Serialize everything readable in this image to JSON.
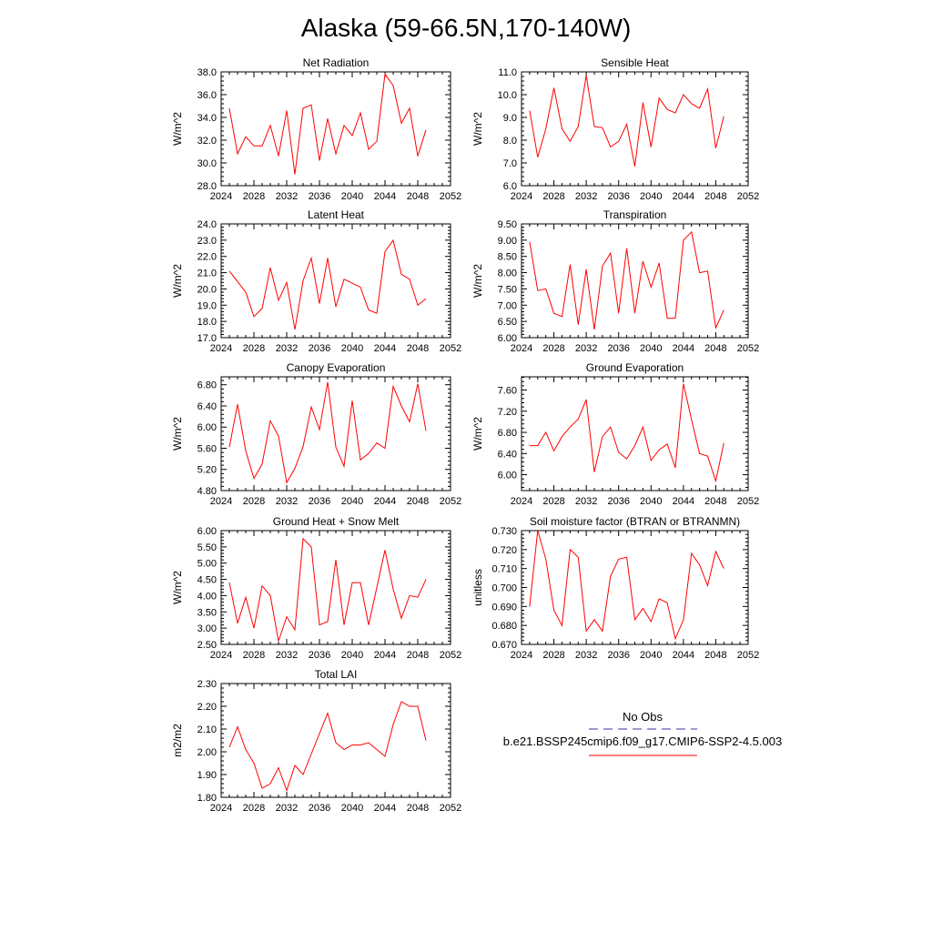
{
  "title": "Alaska (59-66.5N,170-140W)",
  "colors": {
    "model": "#ff0000",
    "obs": "#3333aa",
    "axis": "#000000"
  },
  "legend": {
    "obs_label": "No Obs",
    "model_label": "b.e21.BSSP245cmip6.f09_g17.CMIP6-SSP2-4.5.003"
  },
  "chart_data": [
    {
      "type": "line",
      "title": "Net Radiation",
      "ylabel": "W/m^2",
      "xlim": [
        2024,
        2052
      ],
      "ylim": [
        28,
        38
      ],
      "xticks": [
        2024,
        2028,
        2032,
        2036,
        2040,
        2044,
        2048,
        2052
      ],
      "yticks": [
        28,
        30,
        32,
        34,
        36,
        38
      ],
      "ytick_labels": [
        "28.0",
        "30.0",
        "32.0",
        "34.0",
        "36.0",
        "38.0"
      ],
      "x": [
        2025,
        2026,
        2027,
        2028,
        2029,
        2030,
        2031,
        2032,
        2033,
        2034,
        2035,
        2036,
        2037,
        2038,
        2039,
        2040,
        2041,
        2042,
        2043,
        2044,
        2045,
        2046,
        2047,
        2048,
        2049
      ],
      "series": [
        {
          "values": [
            34.8,
            30.8,
            32.3,
            31.5,
            31.5,
            33.3,
            30.6,
            34.6,
            29.0,
            34.8,
            35.1,
            30.2,
            33.9,
            30.8,
            33.3,
            32.4,
            34.4,
            31.2,
            31.9,
            37.8,
            36.8,
            33.5,
            34.8,
            30.6,
            32.9
          ]
        }
      ]
    },
    {
      "type": "line",
      "title": "Sensible Heat",
      "ylabel": "W/m^2",
      "xlim": [
        2024,
        2052
      ],
      "ylim": [
        6,
        11
      ],
      "xticks": [
        2024,
        2028,
        2032,
        2036,
        2040,
        2044,
        2048,
        2052
      ],
      "yticks": [
        6,
        7,
        8,
        9,
        10,
        11
      ],
      "ytick_labels": [
        "6.0",
        "7.0",
        "8.0",
        "9.0",
        "10.0",
        "11.0"
      ],
      "x": [
        2025,
        2026,
        2027,
        2028,
        2029,
        2030,
        2031,
        2032,
        2033,
        2034,
        2035,
        2036,
        2037,
        2038,
        2039,
        2040,
        2041,
        2042,
        2043,
        2044,
        2045,
        2046,
        2047,
        2048,
        2049
      ],
      "series": [
        {
          "values": [
            9.3,
            7.25,
            8.5,
            10.3,
            8.5,
            7.95,
            8.6,
            10.85,
            8.6,
            8.55,
            7.7,
            7.95,
            8.7,
            6.85,
            9.65,
            7.7,
            9.85,
            9.35,
            9.2,
            10.0,
            9.6,
            9.4,
            10.25,
            7.65,
            9.05
          ]
        }
      ]
    },
    {
      "type": "line",
      "title": "Latent Heat",
      "ylabel": "W/m^2",
      "xlim": [
        2024,
        2052
      ],
      "ylim": [
        17,
        24
      ],
      "xticks": [
        2024,
        2028,
        2032,
        2036,
        2040,
        2044,
        2048,
        2052
      ],
      "yticks": [
        17,
        18,
        19,
        20,
        21,
        22,
        23,
        24
      ],
      "ytick_labels": [
        "17.0",
        "18.0",
        "19.0",
        "20.0",
        "21.0",
        "22.0",
        "23.0",
        "24.0"
      ],
      "x": [
        2025,
        2027,
        2028,
        2029,
        2030,
        2031,
        2032,
        2033,
        2034,
        2035,
        2036,
        2037,
        2038,
        2039,
        2041,
        2042,
        2043,
        2044,
        2045,
        2046,
        2047,
        2048,
        2049
      ],
      "series": [
        {
          "values": [
            21.1,
            19.8,
            18.3,
            18.8,
            21.3,
            19.3,
            20.4,
            17.5,
            20.5,
            21.9,
            19.1,
            21.9,
            18.9,
            20.6,
            20.1,
            18.7,
            18.5,
            22.3,
            23.0,
            20.9,
            20.6,
            19.0,
            19.4
          ]
        }
      ]
    },
    {
      "type": "line",
      "title": "Transpiration",
      "ylabel": "W/m^2",
      "xlim": [
        2024,
        2052
      ],
      "ylim": [
        6,
        9.5
      ],
      "xticks": [
        2024,
        2028,
        2032,
        2036,
        2040,
        2044,
        2048,
        2052
      ],
      "yticks": [
        6,
        6.5,
        7,
        7.5,
        8,
        8.5,
        9,
        9.5
      ],
      "ytick_labels": [
        "6.00",
        "6.50",
        "7.00",
        "7.50",
        "8.00",
        "8.50",
        "9.00",
        "9.50"
      ],
      "x": [
        2025,
        2026,
        2027,
        2028,
        2029,
        2030,
        2031,
        2032,
        2033,
        2034,
        2035,
        2036,
        2037,
        2038,
        2039,
        2040,
        2041,
        2042,
        2043,
        2044,
        2045,
        2046,
        2047,
        2048,
        2049
      ],
      "series": [
        {
          "values": [
            8.95,
            7.45,
            7.5,
            6.75,
            6.65,
            8.25,
            6.4,
            8.1,
            6.25,
            8.2,
            8.6,
            6.75,
            8.75,
            6.75,
            8.35,
            7.55,
            8.3,
            6.6,
            6.6,
            9.0,
            9.25,
            8.0,
            8.05,
            6.3,
            6.85
          ]
        }
      ]
    },
    {
      "type": "line",
      "title": "Canopy Evaporation",
      "ylabel": "W/m^2",
      "xlim": [
        2024,
        2052
      ],
      "ylim": [
        4.8,
        6.95
      ],
      "xticks": [
        2024,
        2028,
        2032,
        2036,
        2040,
        2044,
        2048,
        2052
      ],
      "yticks": [
        4.8,
        5.2,
        5.6,
        6.0,
        6.4,
        6.8
      ],
      "ytick_labels": [
        "4.80",
        "5.20",
        "5.60",
        "6.00",
        "6.40",
        "6.80"
      ],
      "x": [
        2025,
        2026,
        2027,
        2028,
        2029,
        2030,
        2031,
        2032,
        2033,
        2034,
        2035,
        2036,
        2037,
        2038,
        2039,
        2040,
        2041,
        2042,
        2043,
        2044,
        2045,
        2046,
        2047,
        2048,
        2049
      ],
      "series": [
        {
          "values": [
            5.62,
            6.43,
            5.55,
            5.03,
            5.3,
            6.12,
            5.83,
            4.95,
            5.22,
            5.63,
            6.38,
            5.95,
            6.85,
            5.62,
            5.26,
            6.5,
            5.38,
            5.5,
            5.7,
            5.6,
            6.77,
            6.4,
            6.1,
            6.82,
            5.93
          ]
        }
      ]
    },
    {
      "type": "line",
      "title": "Ground Evaporation",
      "ylabel": "W/m^2",
      "xlim": [
        2024,
        2052
      ],
      "ylim": [
        5.7,
        7.85
      ],
      "xticks": [
        2024,
        2028,
        2032,
        2036,
        2040,
        2044,
        2048,
        2052
      ],
      "yticks": [
        6.0,
        6.4,
        6.8,
        7.2,
        7.6
      ],
      "ytick_labels": [
        "6.00",
        "6.40",
        "6.80",
        "7.20",
        "7.60"
      ],
      "x": [
        2025,
        2026,
        2027,
        2028,
        2029,
        2030,
        2031,
        2032,
        2033,
        2034,
        2035,
        2036,
        2037,
        2038,
        2039,
        2040,
        2041,
        2042,
        2043,
        2044,
        2045,
        2046,
        2047,
        2048,
        2049
      ],
      "series": [
        {
          "values": [
            6.55,
            6.55,
            6.8,
            6.45,
            6.72,
            6.9,
            7.05,
            7.42,
            6.05,
            6.72,
            6.9,
            6.42,
            6.3,
            6.55,
            6.9,
            6.27,
            6.47,
            6.58,
            6.13,
            7.72,
            7.04,
            6.4,
            6.35,
            5.88,
            6.6
          ]
        }
      ]
    },
    {
      "type": "line",
      "title": "Ground Heat + Snow Melt",
      "ylabel": "W/m^2",
      "xlim": [
        2024,
        2052
      ],
      "ylim": [
        2.5,
        6.0
      ],
      "xticks": [
        2024,
        2028,
        2032,
        2036,
        2040,
        2044,
        2048,
        2052
      ],
      "yticks": [
        2.5,
        3.0,
        3.5,
        4.0,
        4.5,
        5.0,
        5.5,
        6.0
      ],
      "ytick_labels": [
        "2.50",
        "3.00",
        "3.50",
        "4.00",
        "4.50",
        "5.00",
        "5.50",
        "6.00"
      ],
      "x": [
        2025,
        2026,
        2027,
        2028,
        2029,
        2030,
        2031,
        2032,
        2033,
        2034,
        2035,
        2036,
        2037,
        2038,
        2039,
        2040,
        2041,
        2042,
        2043,
        2044,
        2045,
        2046,
        2047,
        2048,
        2049
      ],
      "series": [
        {
          "values": [
            4.4,
            3.15,
            3.95,
            3.0,
            4.3,
            4.0,
            2.6,
            3.35,
            2.95,
            5.75,
            5.5,
            3.1,
            3.2,
            5.1,
            3.1,
            4.4,
            4.4,
            3.1,
            4.25,
            5.4,
            4.2,
            3.3,
            4.0,
            3.95,
            4.5
          ]
        }
      ]
    },
    {
      "type": "line",
      "title": "Soil moisture factor (BTRAN or BTRANMN)",
      "ylabel": "unitless",
      "xlim": [
        2024,
        2052
      ],
      "ylim": [
        0.67,
        0.73
      ],
      "xticks": [
        2024,
        2028,
        2032,
        2036,
        2040,
        2044,
        2048,
        2052
      ],
      "yticks": [
        0.67,
        0.68,
        0.69,
        0.7,
        0.71,
        0.72,
        0.73
      ],
      "ytick_labels": [
        "0.670",
        "0.680",
        "0.690",
        "0.700",
        "0.710",
        "0.720",
        "0.730"
      ],
      "x": [
        2025,
        2026,
        2027,
        2028,
        2029,
        2030,
        2031,
        2032,
        2033,
        2034,
        2035,
        2036,
        2037,
        2038,
        2039,
        2040,
        2041,
        2042,
        2043,
        2044,
        2045,
        2046,
        2047,
        2048,
        2049
      ],
      "series": [
        {
          "values": [
            0.69,
            0.73,
            0.715,
            0.688,
            0.68,
            0.72,
            0.716,
            0.677,
            0.683,
            0.677,
            0.706,
            0.715,
            0.716,
            0.683,
            0.689,
            0.682,
            0.694,
            0.692,
            0.673,
            0.683,
            0.718,
            0.712,
            0.701,
            0.719,
            0.71
          ]
        }
      ]
    },
    {
      "type": "line",
      "title": "Total LAI",
      "ylabel": "m2/m2",
      "xlim": [
        2024,
        2052
      ],
      "ylim": [
        1.8,
        2.3
      ],
      "xticks": [
        2024,
        2028,
        2032,
        2036,
        2040,
        2044,
        2048,
        2052
      ],
      "yticks": [
        1.8,
        1.9,
        2.0,
        2.1,
        2.2,
        2.3
      ],
      "ytick_labels": [
        "1.80",
        "1.90",
        "2.00",
        "2.10",
        "2.20",
        "2.30"
      ],
      "x": [
        2025,
        2026,
        2027,
        2028,
        2029,
        2030,
        2031,
        2032,
        2033,
        2034,
        2035,
        2036,
        2037,
        2038,
        2039,
        2040,
        2041,
        2042,
        2043,
        2044,
        2045,
        2046,
        2047,
        2048,
        2049
      ],
      "series": [
        {
          "values": [
            2.02,
            2.11,
            2.01,
            1.95,
            1.84,
            1.86,
            1.93,
            1.83,
            1.94,
            1.9,
            1.99,
            2.08,
            2.17,
            2.04,
            2.01,
            2.03,
            2.03,
            2.04,
            2.01,
            1.98,
            2.12,
            2.22,
            2.2,
            2.2,
            2.05
          ]
        }
      ]
    }
  ]
}
